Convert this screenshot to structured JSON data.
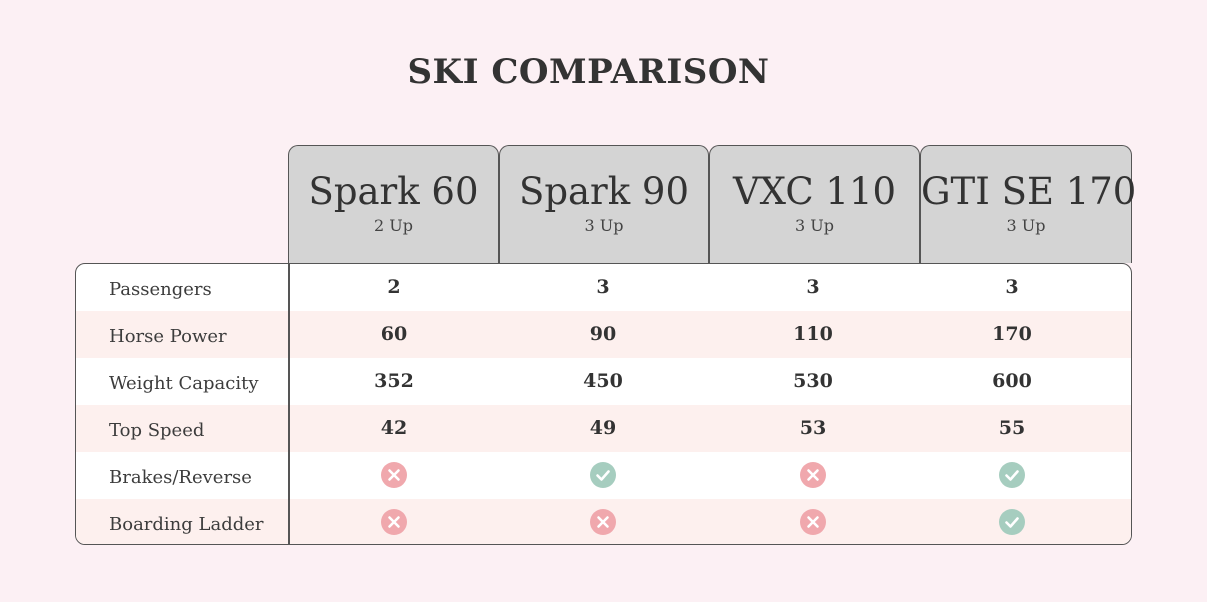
{
  "title": "SKI COMPARISON",
  "models": [
    {
      "name": "Spark 60",
      "sub": "2 Up"
    },
    {
      "name": "Spark 90",
      "sub": "3 Up"
    },
    {
      "name": "VXC 110",
      "sub": "3 Up"
    },
    {
      "name": "GTI SE 170",
      "sub": "3 Up"
    }
  ],
  "rows": [
    {
      "label": "Passengers",
      "values": [
        "2",
        "3",
        "3",
        "3"
      ]
    },
    {
      "label": "Horse Power",
      "values": [
        "60",
        "90",
        "110",
        "170"
      ]
    },
    {
      "label": "Weight Capacity",
      "values": [
        "352",
        "450",
        "530",
        "600"
      ]
    },
    {
      "label": "Top Speed",
      "values": [
        "42",
        "49",
        "53",
        "55"
      ]
    },
    {
      "label": "Brakes/Reverse",
      "icons": [
        "x-icon",
        "check-icon",
        "x-icon",
        "check-icon"
      ]
    },
    {
      "label": "Boarding Ladder",
      "icons": [
        "x-icon",
        "x-icon",
        "x-icon",
        "check-icon"
      ]
    }
  ],
  "colors": {
    "check": "#a6cdbf",
    "x": "#f0a8ad",
    "header_bg": "#d4d4d4",
    "page_bg": "#fcf0f4",
    "alt_row": "#fdf0ee"
  }
}
